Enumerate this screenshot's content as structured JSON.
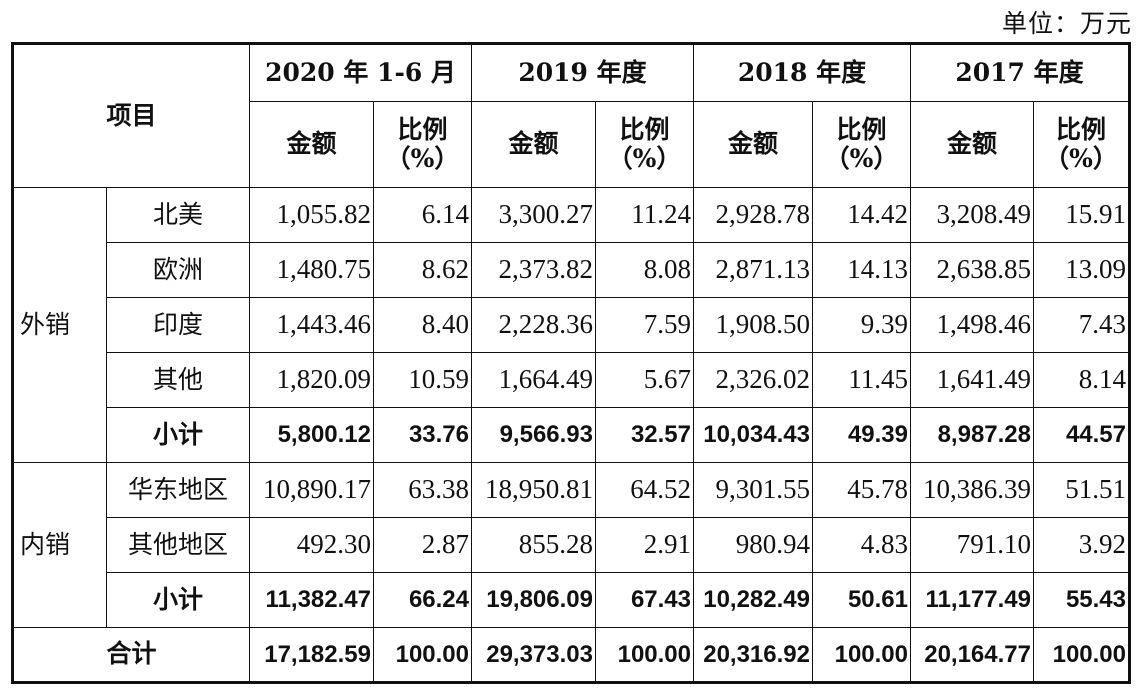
{
  "unit_label": "单位：万元",
  "header": {
    "item": "项目",
    "periods": [
      "2020 年 1-6 月",
      "2019 年度",
      "2018 年度",
      "2017 年度"
    ],
    "amount": "金额",
    "ratio_line1": "比例",
    "ratio_line2": "（%）"
  },
  "export": {
    "label": "外销",
    "rows": [
      {
        "name": "北美",
        "values": [
          "1,055.82",
          "6.14",
          "3,300.27",
          "11.24",
          "2,928.78",
          "14.42",
          "3,208.49",
          "15.91"
        ]
      },
      {
        "name": "欧洲",
        "values": [
          "1,480.75",
          "8.62",
          "2,373.82",
          "8.08",
          "2,871.13",
          "14.13",
          "2,638.85",
          "13.09"
        ]
      },
      {
        "name": "印度",
        "values": [
          "1,443.46",
          "8.40",
          "2,228.36",
          "7.59",
          "1,908.50",
          "9.39",
          "1,498.46",
          "7.43"
        ]
      },
      {
        "name": "其他",
        "values": [
          "1,820.09",
          "10.59",
          "1,664.49",
          "5.67",
          "2,326.02",
          "11.45",
          "1,641.49",
          "8.14"
        ]
      }
    ],
    "subtotal": {
      "name": "小计",
      "values": [
        "5,800.12",
        "33.76",
        "9,566.93",
        "32.57",
        "10,034.43",
        "49.39",
        "8,987.28",
        "44.57"
      ]
    }
  },
  "domestic": {
    "label": "内销",
    "rows": [
      {
        "name": "华东地区",
        "values": [
          "10,890.17",
          "63.38",
          "18,950.81",
          "64.52",
          "9,301.55",
          "45.78",
          "10,386.39",
          "51.51"
        ]
      },
      {
        "name": "其他地区",
        "values": [
          "492.30",
          "2.87",
          "855.28",
          "2.91",
          "980.94",
          "4.83",
          "791.10",
          "3.92"
        ]
      }
    ],
    "subtotal": {
      "name": "小计",
      "values": [
        "11,382.47",
        "66.24",
        "19,806.09",
        "67.43",
        "10,282.49",
        "50.61",
        "11,177.49",
        "55.43"
      ]
    }
  },
  "total": {
    "name": "合计",
    "values": [
      "17,182.59",
      "100.00",
      "29,373.03",
      "100.00",
      "20,316.92",
      "100.00",
      "20,164.77",
      "100.00"
    ]
  }
}
